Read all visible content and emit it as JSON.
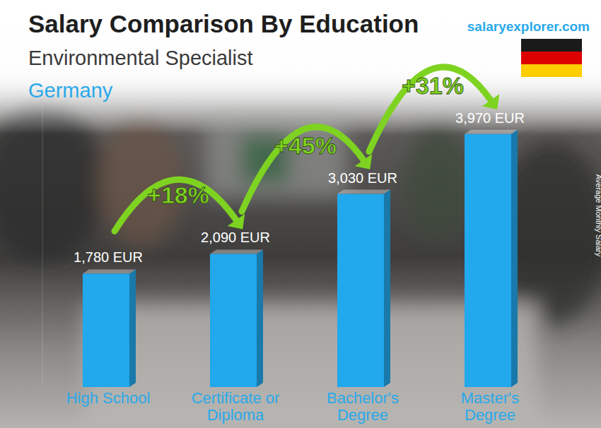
{
  "chart_data": {
    "type": "bar",
    "title": "Salary Comparison By Education",
    "subtitle": "Environmental Specialist",
    "location": "Germany",
    "source": "salaryexplorer.com",
    "y_label": "Average Monthly Salary",
    "categories": [
      "High School",
      "Certificate or Diploma",
      "Bachelor's Degree",
      "Master's Degree"
    ],
    "values": [
      1780,
      2090,
      3030,
      3970
    ],
    "value_labels": [
      "1,780 EUR",
      "2,090 EUR",
      "3,030 EUR",
      "3,970 EUR"
    ],
    "annotations": [
      "+18%",
      "+45%",
      "+31%"
    ],
    "color": "#22a8ec",
    "ylim": [
      0,
      4400
    ],
    "data_labels": true,
    "tick_labels": "x",
    "grid": false
  }
}
